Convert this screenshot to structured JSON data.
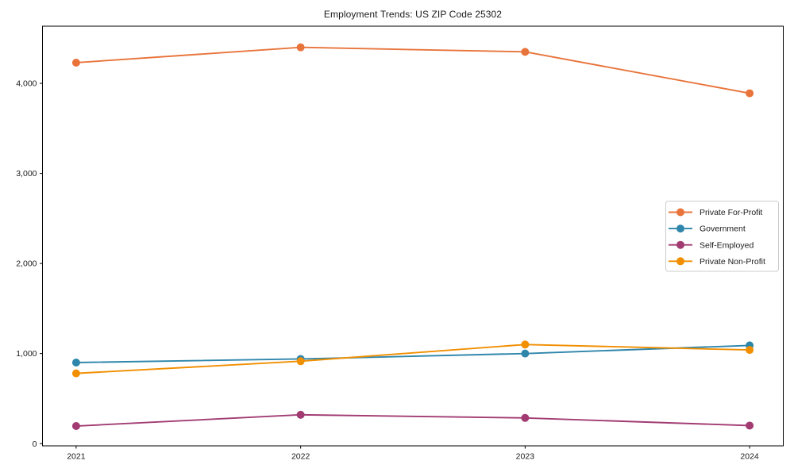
{
  "chart_data": {
    "type": "line",
    "title": "Employment Trends: US ZIP Code 25302",
    "xlabel": "",
    "ylabel": "",
    "x": [
      2021,
      2022,
      2023,
      2024
    ],
    "x_tick_labels": [
      "2021",
      "2022",
      "2023",
      "2024"
    ],
    "y_ticks": [
      0,
      1000,
      2000,
      3000,
      4000
    ],
    "y_tick_labels": [
      "0",
      "1,000",
      "2,000",
      "3,000",
      "4,000"
    ],
    "xlim": [
      2020.85,
      2024.15
    ],
    "ylim": [
      -25,
      4635
    ],
    "grid": false,
    "legend": {
      "position": "center-right",
      "border_color": "#cccccc",
      "background": "#ffffff",
      "text_color": "#1a1a1a"
    },
    "series": [
      {
        "name": "Private For-Profit",
        "color": "#E8743B",
        "values": [
          4230,
          4400,
          4350,
          3890
        ]
      },
      {
        "name": "Government",
        "color": "#2E86AB",
        "values": [
          900,
          940,
          1000,
          1090
        ]
      },
      {
        "name": "Self-Employed",
        "color": "#A23B72",
        "values": [
          195,
          320,
          285,
          200
        ]
      },
      {
        "name": "Private Non-Profit",
        "color": "#F18F01",
        "values": [
          780,
          915,
          1100,
          1040
        ]
      }
    ],
    "marker": "circle",
    "marker_size": 5,
    "line_width": 1.9,
    "frame_color": "#000000",
    "text_color": "#1a1a1a"
  }
}
